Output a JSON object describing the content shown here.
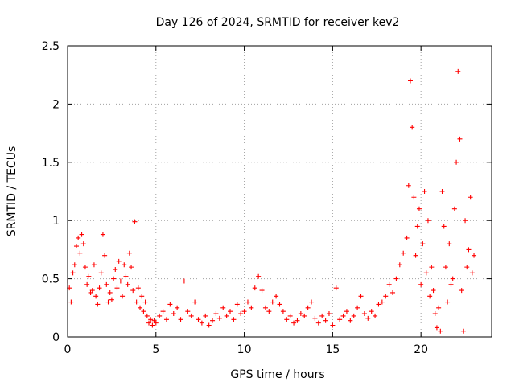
{
  "chart_data": {
    "type": "scatter",
    "title": "Day 126 of 2024, SRMTID for receiver kev2",
    "xlabel": "GPS time / hours",
    "ylabel": "SRMTID / TECUs",
    "xlim": [
      0,
      24
    ],
    "ylim": [
      0,
      2.5
    ],
    "xticks": [
      0,
      5,
      10,
      15,
      20
    ],
    "yticks": [
      0,
      0.5,
      1,
      1.5,
      2,
      2.5
    ],
    "xtick_labels": [
      "0",
      "5",
      "10",
      "15",
      "20"
    ],
    "ytick_labels": [
      "0",
      "0.5",
      "1",
      "1.5",
      "2",
      "2.5"
    ],
    "grid": true,
    "marker": "plus",
    "series": [
      {
        "name": "kev2",
        "color": "#ff0000",
        "points": [
          [
            0.0,
            0.48
          ],
          [
            0.1,
            0.42
          ],
          [
            0.2,
            0.3
          ],
          [
            0.3,
            0.55
          ],
          [
            0.4,
            0.62
          ],
          [
            0.5,
            0.78
          ],
          [
            0.6,
            0.85
          ],
          [
            0.7,
            0.72
          ],
          [
            0.8,
            0.88
          ],
          [
            0.9,
            0.8
          ],
          [
            1.0,
            0.6
          ],
          [
            1.1,
            0.45
          ],
          [
            1.2,
            0.52
          ],
          [
            1.3,
            0.38
          ],
          [
            1.4,
            0.4
          ],
          [
            1.5,
            0.62
          ],
          [
            1.6,
            0.35
          ],
          [
            1.7,
            0.28
          ],
          [
            1.8,
            0.42
          ],
          [
            1.9,
            0.55
          ],
          [
            2.0,
            0.88
          ],
          [
            2.1,
            0.7
          ],
          [
            2.2,
            0.45
          ],
          [
            2.3,
            0.3
          ],
          [
            2.4,
            0.38
          ],
          [
            2.5,
            0.32
          ],
          [
            2.6,
            0.5
          ],
          [
            2.7,
            0.58
          ],
          [
            2.8,
            0.42
          ],
          [
            2.9,
            0.65
          ],
          [
            3.0,
            0.48
          ],
          [
            3.1,
            0.35
          ],
          [
            3.2,
            0.62
          ],
          [
            3.3,
            0.52
          ],
          [
            3.4,
            0.45
          ],
          [
            3.5,
            0.72
          ],
          [
            3.6,
            0.6
          ],
          [
            3.7,
            0.4
          ],
          [
            3.8,
            0.99
          ],
          [
            3.9,
            0.3
          ],
          [
            4.0,
            0.42
          ],
          [
            4.1,
            0.25
          ],
          [
            4.2,
            0.35
          ],
          [
            4.3,
            0.22
          ],
          [
            4.4,
            0.3
          ],
          [
            4.5,
            0.18
          ],
          [
            4.6,
            0.12
          ],
          [
            4.7,
            0.15
          ],
          [
            4.8,
            0.1
          ],
          [
            4.9,
            0.14
          ],
          [
            5.0,
            0.12
          ],
          [
            5.2,
            0.18
          ],
          [
            5.4,
            0.22
          ],
          [
            5.6,
            0.15
          ],
          [
            5.8,
            0.28
          ],
          [
            6.0,
            0.2
          ],
          [
            6.2,
            0.25
          ],
          [
            6.4,
            0.15
          ],
          [
            6.6,
            0.48
          ],
          [
            6.8,
            0.22
          ],
          [
            7.0,
            0.18
          ],
          [
            7.2,
            0.3
          ],
          [
            7.4,
            0.15
          ],
          [
            7.6,
            0.12
          ],
          [
            7.8,
            0.18
          ],
          [
            8.0,
            0.1
          ],
          [
            8.2,
            0.14
          ],
          [
            8.4,
            0.2
          ],
          [
            8.6,
            0.16
          ],
          [
            8.8,
            0.25
          ],
          [
            9.0,
            0.18
          ],
          [
            9.2,
            0.22
          ],
          [
            9.4,
            0.15
          ],
          [
            9.6,
            0.28
          ],
          [
            9.8,
            0.2
          ],
          [
            10.0,
            0.22
          ],
          [
            10.2,
            0.3
          ],
          [
            10.4,
            0.25
          ],
          [
            10.6,
            0.42
          ],
          [
            10.8,
            0.52
          ],
          [
            11.0,
            0.4
          ],
          [
            11.2,
            0.25
          ],
          [
            11.4,
            0.22
          ],
          [
            11.6,
            0.3
          ],
          [
            11.8,
            0.35
          ],
          [
            12.0,
            0.28
          ],
          [
            12.2,
            0.22
          ],
          [
            12.4,
            0.15
          ],
          [
            12.6,
            0.18
          ],
          [
            12.8,
            0.12
          ],
          [
            13.0,
            0.14
          ],
          [
            13.2,
            0.2
          ],
          [
            13.4,
            0.18
          ],
          [
            13.6,
            0.25
          ],
          [
            13.8,
            0.3
          ],
          [
            14.0,
            0.16
          ],
          [
            14.2,
            0.12
          ],
          [
            14.4,
            0.18
          ],
          [
            14.6,
            0.14
          ],
          [
            14.8,
            0.2
          ],
          [
            15.0,
            0.1
          ],
          [
            15.2,
            0.42
          ],
          [
            15.4,
            0.15
          ],
          [
            15.6,
            0.18
          ],
          [
            15.8,
            0.22
          ],
          [
            16.0,
            0.14
          ],
          [
            16.2,
            0.18
          ],
          [
            16.4,
            0.25
          ],
          [
            16.6,
            0.35
          ],
          [
            16.8,
            0.2
          ],
          [
            17.0,
            0.16
          ],
          [
            17.2,
            0.22
          ],
          [
            17.4,
            0.18
          ],
          [
            17.6,
            0.28
          ],
          [
            17.8,
            0.3
          ],
          [
            18.0,
            0.35
          ],
          [
            18.2,
            0.45
          ],
          [
            18.4,
            0.38
          ],
          [
            18.6,
            0.5
          ],
          [
            18.8,
            0.62
          ],
          [
            19.0,
            0.72
          ],
          [
            19.2,
            0.85
          ],
          [
            19.3,
            1.3
          ],
          [
            19.4,
            2.2
          ],
          [
            19.5,
            1.8
          ],
          [
            19.6,
            1.2
          ],
          [
            19.7,
            0.7
          ],
          [
            19.8,
            0.95
          ],
          [
            19.9,
            1.1
          ],
          [
            20.0,
            0.45
          ],
          [
            20.1,
            0.8
          ],
          [
            20.2,
            1.25
          ],
          [
            20.3,
            0.55
          ],
          [
            20.4,
            1.0
          ],
          [
            20.5,
            0.35
          ],
          [
            20.6,
            0.6
          ],
          [
            20.7,
            0.4
          ],
          [
            20.8,
            0.2
          ],
          [
            20.9,
            0.08
          ],
          [
            21.0,
            0.25
          ],
          [
            21.1,
            0.05
          ],
          [
            21.2,
            1.25
          ],
          [
            21.3,
            0.95
          ],
          [
            21.4,
            0.6
          ],
          [
            21.5,
            0.3
          ],
          [
            21.6,
            0.8
          ],
          [
            21.7,
            0.45
          ],
          [
            21.8,
            0.5
          ],
          [
            21.9,
            1.1
          ],
          [
            22.0,
            1.5
          ],
          [
            22.1,
            2.28
          ],
          [
            22.2,
            1.7
          ],
          [
            22.3,
            0.4
          ],
          [
            22.4,
            0.05
          ],
          [
            22.5,
            1.0
          ],
          [
            22.6,
            0.6
          ],
          [
            22.7,
            0.75
          ],
          [
            22.8,
            1.2
          ],
          [
            22.9,
            0.55
          ],
          [
            23.0,
            0.7
          ]
        ]
      }
    ]
  }
}
